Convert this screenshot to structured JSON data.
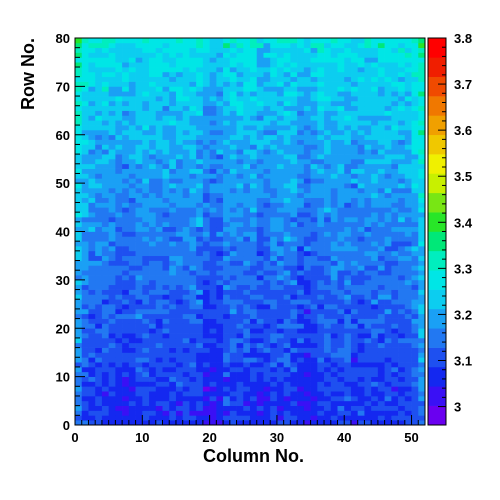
{
  "chart_data": {
    "type": "heatmap",
    "title": "",
    "xlabel": "Column No.",
    "ylabel": "Row No.",
    "xlim": [
      0,
      52
    ],
    "ylim": [
      0,
      80
    ],
    "x_ticks": [
      0,
      10,
      20,
      30,
      40,
      50
    ],
    "y_ticks": [
      0,
      10,
      20,
      30,
      40,
      50,
      60,
      70,
      80
    ],
    "n_columns": 52,
    "n_rows": 80,
    "z_range": [
      2.96,
      3.8
    ],
    "colorbar_ticks": [
      3.0,
      3.1,
      3.2,
      3.3,
      3.4,
      3.5,
      3.6,
      3.7,
      3.8
    ],
    "colorbar_tick_labels": [
      "3",
      "3.1",
      "3.2",
      "3.3",
      "3.4",
      "3.5",
      "3.6",
      "3.7",
      "3.8"
    ],
    "palette": [
      "#6a00f0",
      "#3a10f5",
      "#1428f0",
      "#1e50f0",
      "#2278f2",
      "#1aa0f5",
      "#0ccdf0",
      "#00e6e6",
      "#00eebe",
      "#00e878",
      "#28e628",
      "#78e614",
      "#c8f000",
      "#f0f000",
      "#f0c800",
      "#f0a000",
      "#f07800",
      "#f04a00",
      "#f01e00",
      "#ff0000"
    ],
    "grid": false,
    "legend": "colorbar-right",
    "description_of_values": "Per-cell mean roughly 3.08 near rows 0-25 (blue), rising to about 3.22-3.30 (cyan/green) toward rows 60-80; darker vertical streaks near columns 20, 27, 34; greener edges at column 0 and 51."
  }
}
